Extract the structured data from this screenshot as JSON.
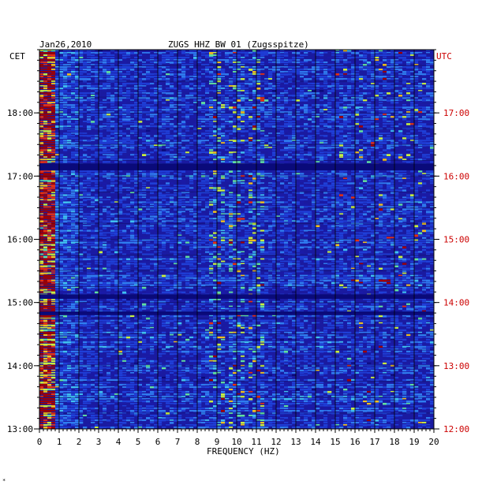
{
  "chart_data": {
    "type": "heatmap",
    "title": "ZUGS HHZ BW 01 (Zugsspitze)",
    "date": "Jan26,2010",
    "xlabel": "FREQUENCY (HZ)",
    "left_axis_label": "CET",
    "right_axis_label": "UTC",
    "x_ticks": [
      "0",
      "1",
      "2",
      "3",
      "4",
      "5",
      "6",
      "7",
      "8",
      "9",
      "10",
      "11",
      "12",
      "13",
      "14",
      "15",
      "16",
      "17",
      "18",
      "19",
      "20"
    ],
    "xlim": [
      0,
      20
    ],
    "left_ticks": [
      "18:00",
      "17:00",
      "16:00",
      "15:00",
      "14:00",
      "13:00"
    ],
    "right_ticks": [
      "17:00",
      "16:00",
      "15:00",
      "14:00",
      "13:00",
      "12:00"
    ],
    "time_range_cet": [
      "13:00",
      "19:00"
    ],
    "grid": true,
    "colors": {
      "background": "#1a1aa0",
      "grid": "#000000",
      "utc_color": "#cc0000",
      "text": "#000000"
    },
    "colormap": [
      "#0a0a7a",
      "#1a1aa8",
      "#1f3fd8",
      "#2f7cf0",
      "#3fc0f0",
      "#60e0a0",
      "#c8f040",
      "#f0c020",
      "#e83010",
      "#a00000"
    ],
    "features": [
      {
        "label": "strong low-frequency energy",
        "x_range": [
          0.1,
          0.8
        ],
        "intensity": 0.85
      },
      {
        "label": "persistent lines",
        "x_values": [
          9,
          10,
          11
        ],
        "intensity": 0.55
      },
      {
        "label": "bursts",
        "x_range": [
          15,
          19.5
        ],
        "intensity": 0.6
      }
    ]
  },
  "footer_mark": "*"
}
